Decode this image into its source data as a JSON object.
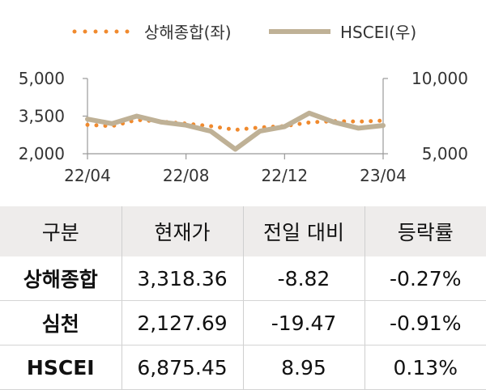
{
  "legend": {
    "series1": "상해종합(좌)",
    "series2": "HSCEI(우)"
  },
  "colors": {
    "shanghai": "#F08A2E",
    "hscei": "#BFB196",
    "header_bg": "#EEECEB",
    "axis": "#999999"
  },
  "chart_data": {
    "type": "line",
    "title": "",
    "x_ticks": [
      "22/04",
      "22/08",
      "22/12",
      "23/04"
    ],
    "x_range": [
      "2022-04",
      "2023-04"
    ],
    "left_axis": {
      "ticks": [
        "5,000",
        "3,500",
        "2,000"
      ],
      "ylim": [
        2000,
        5000
      ]
    },
    "right_axis": {
      "ticks": [
        "10,000",
        "5,000"
      ],
      "ylim": [
        5000,
        10000
      ]
    },
    "series": [
      {
        "name": "상해종합(좌)",
        "axis": "left",
        "style": "dotted",
        "x": [
          "2022-04",
          "2022-05",
          "2022-06",
          "2022-07",
          "2022-08",
          "2022-09",
          "2022-10",
          "2022-11",
          "2022-12",
          "2023-01",
          "2023-02",
          "2023-03",
          "2023-04"
        ],
        "values": [
          3150,
          3100,
          3350,
          3280,
          3200,
          3100,
          2950,
          3050,
          3100,
          3250,
          3300,
          3280,
          3318
        ]
      },
      {
        "name": "HSCEI(우)",
        "axis": "right",
        "style": "solid",
        "x": [
          "2022-04",
          "2022-05",
          "2022-06",
          "2022-07",
          "2022-08",
          "2022-09",
          "2022-10",
          "2022-11",
          "2022-12",
          "2023-01",
          "2023-02",
          "2023-03",
          "2023-04"
        ],
        "values": [
          7300,
          7000,
          7500,
          7100,
          6900,
          6500,
          5300,
          6500,
          6800,
          7700,
          7100,
          6700,
          6875
        ]
      }
    ]
  },
  "table": {
    "headers": [
      "구분",
      "현재가",
      "전일 대비",
      "등락률"
    ],
    "rows": [
      [
        "상해종합",
        "3,318.36",
        "-8.82",
        "-0.27%"
      ],
      [
        "심천",
        "2,127.69",
        "-19.47",
        "-0.91%"
      ],
      [
        "HSCEI",
        "6,875.45",
        "8.95",
        "0.13%"
      ]
    ]
  }
}
